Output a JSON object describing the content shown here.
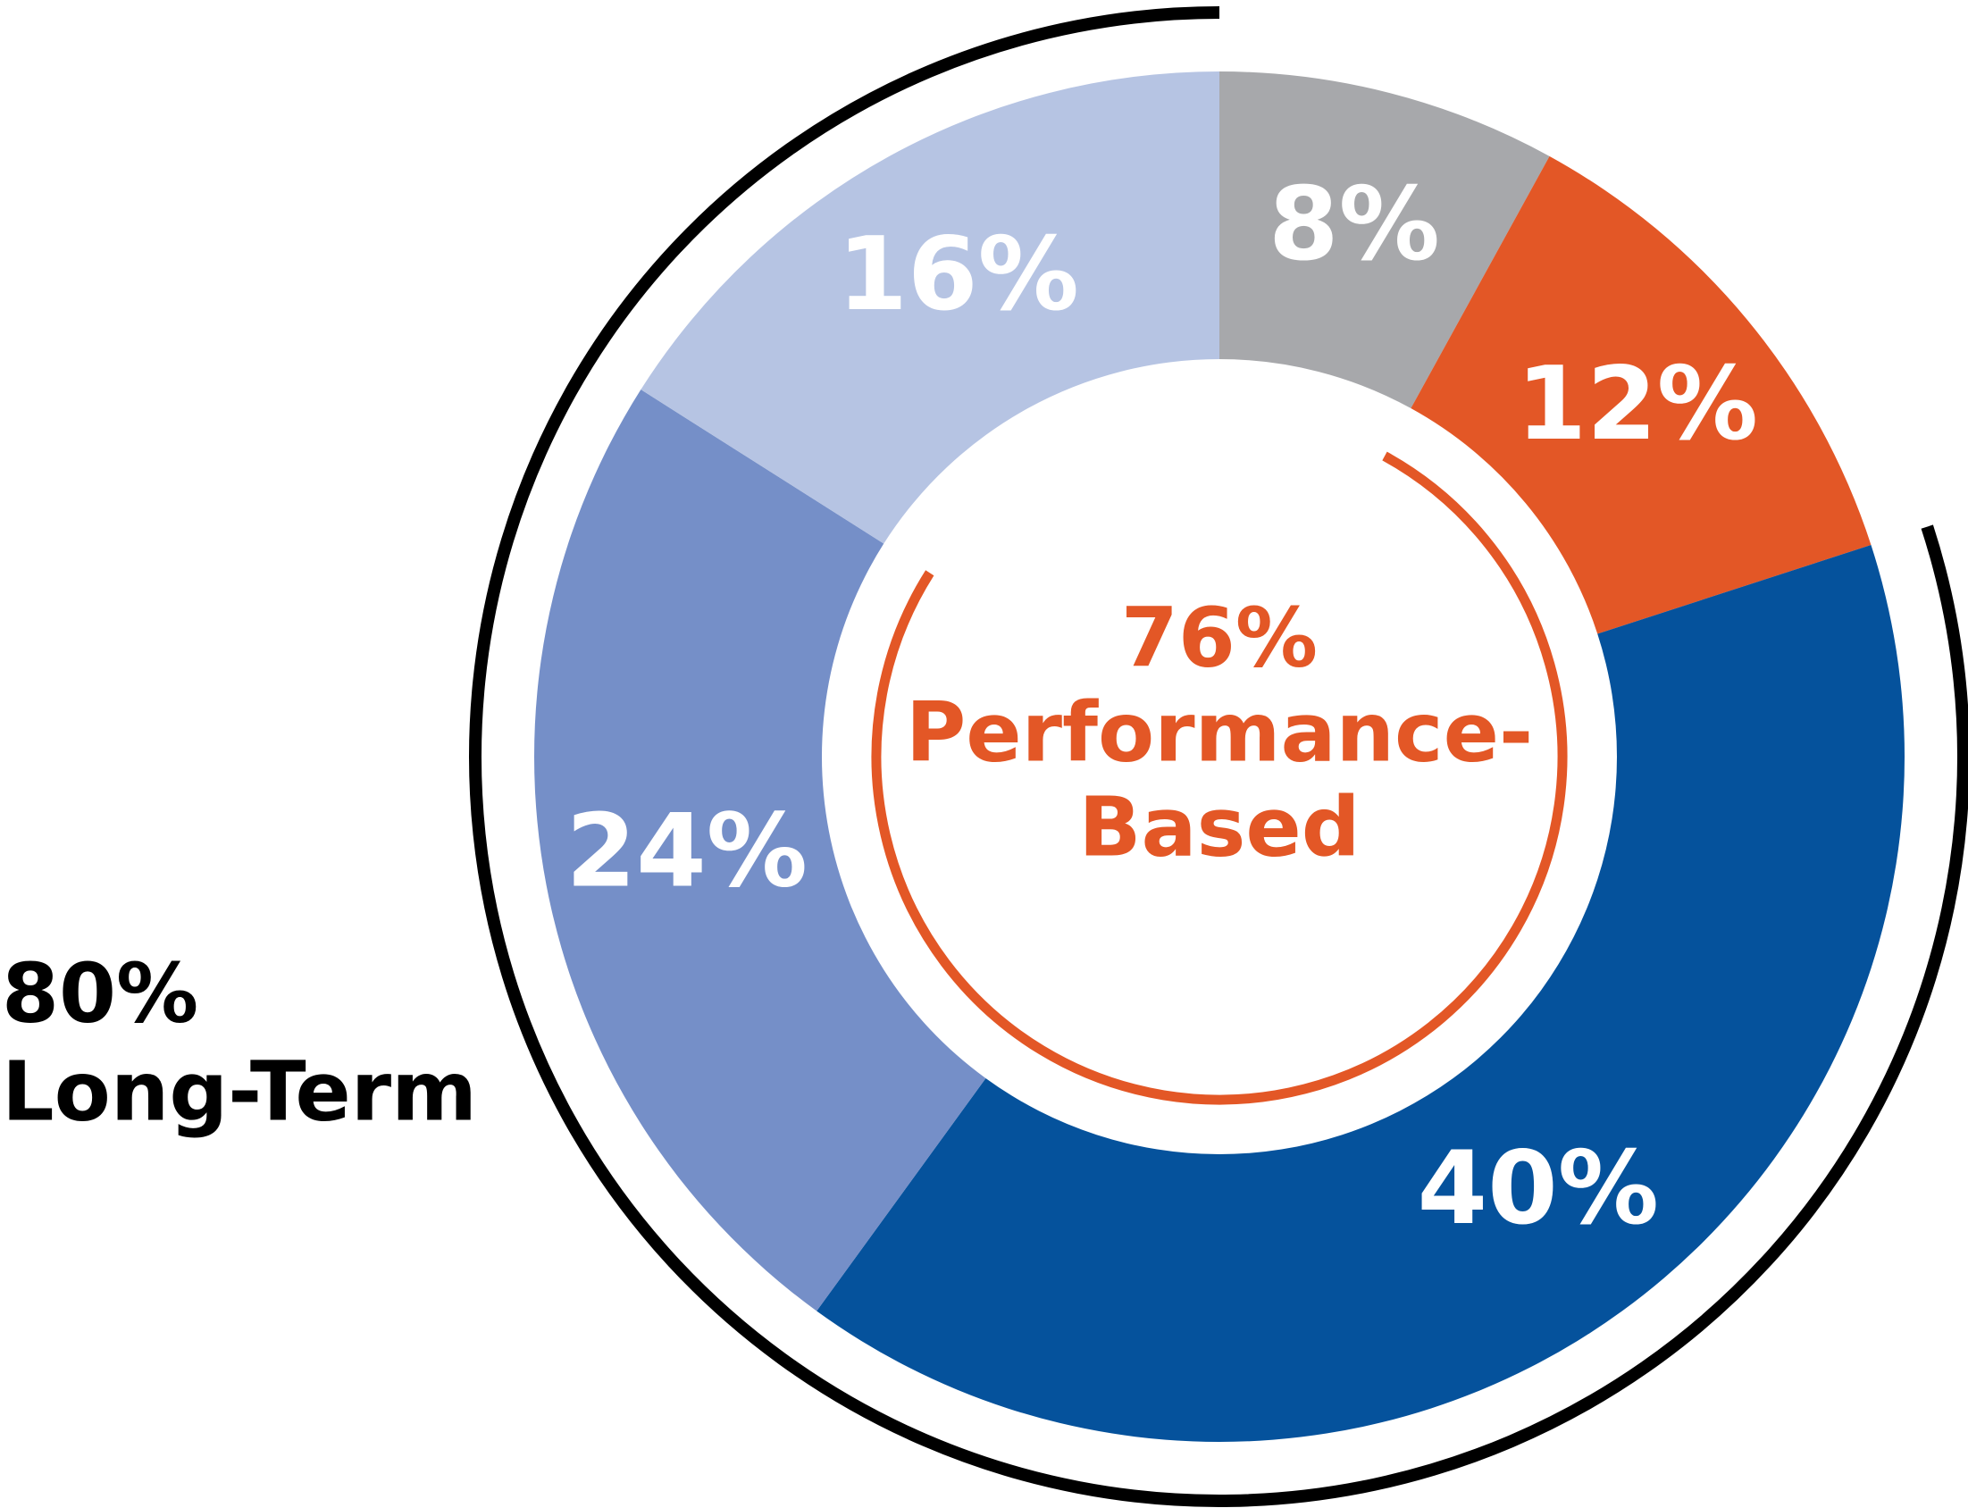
{
  "chart_data": {
    "type": "donut",
    "values": [
      8,
      12,
      40,
      24,
      16
    ],
    "value_labels": [
      "8%",
      "12%",
      "40%",
      "24%",
      "16%"
    ],
    "colors": [
      "#a7a8ab",
      "#e35726",
      "#05529c",
      "#758fc8",
      "#b6c4e3"
    ],
    "annotations": [
      {
        "value": 80,
        "value_label": "80%",
        "text": "Long-Term",
        "color": "#000000"
      },
      {
        "value": 76,
        "value_label": "76%",
        "text": [
          "Performance-",
          "Based"
        ],
        "color": "#e35726"
      }
    ]
  }
}
